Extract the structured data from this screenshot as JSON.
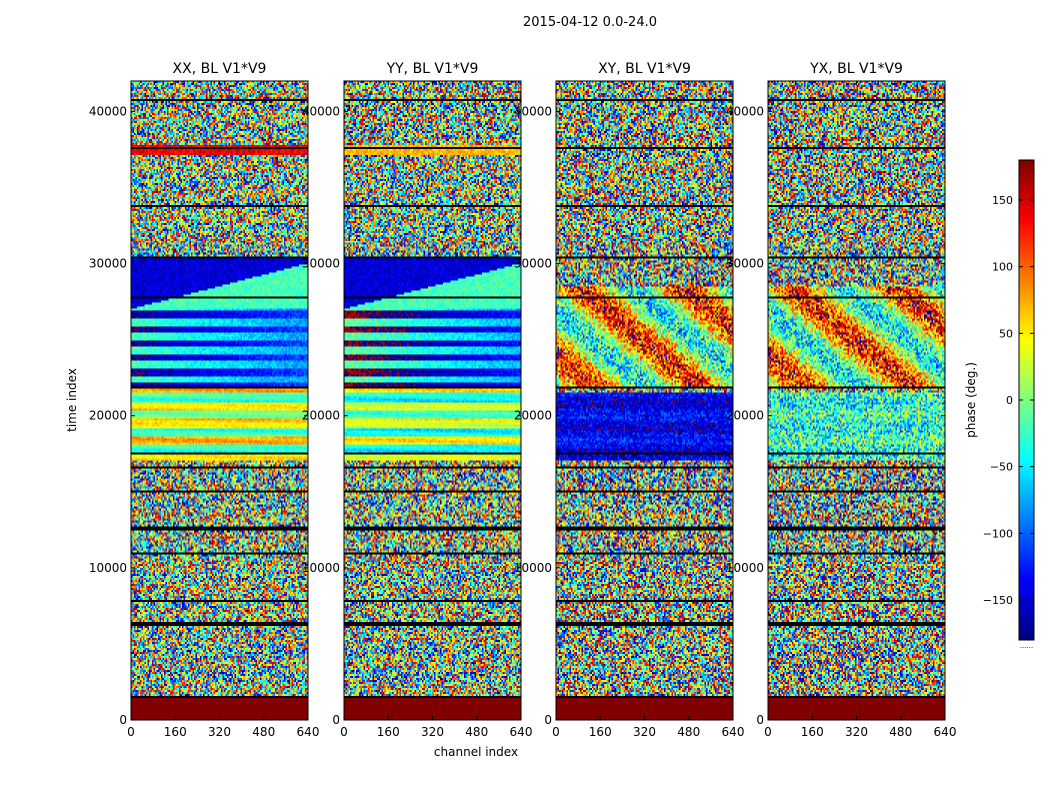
{
  "figure": {
    "suptitle": "2015-04-12 0.0-24.0"
  },
  "chart_data": {
    "type": "heatmap",
    "xlabel": "channel index",
    "ylabel": "time index",
    "xlim": [
      0,
      640
    ],
    "ylim": [
      0,
      42000
    ],
    "xticks": [
      0,
      160,
      320,
      480,
      640
    ],
    "yticks": [
      0,
      10000,
      20000,
      30000,
      40000
    ],
    "colormap": "jet",
    "panels": [
      {
        "title": "XX, BL V1*V9",
        "seed": 11,
        "struct": "xx"
      },
      {
        "title": "YY, BL V1*V9",
        "seed": 23,
        "struct": "yy"
      },
      {
        "title": "XY, BL V1*V9",
        "seed": 37,
        "struct": "xy"
      },
      {
        "title": "YX, BL V1*V9",
        "seed": 53,
        "struct": "yx"
      }
    ],
    "colorbar": {
      "label": "phase (deg.)",
      "vmin": -180,
      "vmax": 180,
      "ticks": [
        -150,
        -100,
        -50,
        0,
        50,
        100,
        150
      ],
      "footer": "......"
    },
    "flagged_rows_time": [
      1500,
      6300,
      7800,
      10900,
      12600,
      15000,
      16600,
      17500,
      21800,
      27800,
      30400,
      33800,
      37600,
      40700
    ],
    "saturated_bottom_band_time": [
      0,
      1500
    ]
  }
}
